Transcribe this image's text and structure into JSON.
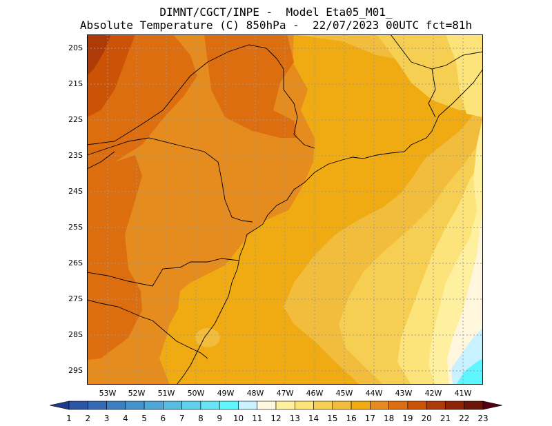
{
  "title": {
    "line1": "DIMNT/CGCT/INPE -  Model Eta05_M01_",
    "line2": "Absolute Temperature (C) 850hPa -  22/07/2023 00UTC fct=81h"
  },
  "map": {
    "lat_labels": [
      "20S",
      "21S",
      "22S",
      "23S",
      "24S",
      "25S",
      "26S",
      "27S",
      "28S",
      "29S"
    ],
    "lon_labels": [
      "53W",
      "52W",
      "51W",
      "50W",
      "49W",
      "48W",
      "47W",
      "46W",
      "45W",
      "44W",
      "43W",
      "42W",
      "41W"
    ],
    "lon_range": [
      -54,
      -40.9
    ],
    "lat_range": [
      -29.5,
      -19.75
    ],
    "grid": true
  },
  "legend": {
    "levels": [
      "1",
      "2",
      "3",
      "4",
      "5",
      "6",
      "7",
      "8",
      "9",
      "10",
      "11",
      "12",
      "13",
      "14",
      "15",
      "16",
      "17",
      "18",
      "19",
      "20",
      "21",
      "22",
      "23"
    ],
    "colors": [
      "#1f3c8c",
      "#2a55a5",
      "#3469b4",
      "#3c7ec0",
      "#4592cc",
      "#4ea7d6",
      "#58bbe1",
      "#5fd0ec",
      "#66e4f5",
      "#5ff5ff",
      "#c8f2ff",
      "#fff6de",
      "#fff0a0",
      "#fde47a",
      "#f6cf52",
      "#f2bc3c",
      "#f0aa12",
      "#e68c1e",
      "#dd6e0f",
      "#cc5206",
      "#ae3a08",
      "#8c2406",
      "#6a1506",
      "#550010"
    ]
  }
}
